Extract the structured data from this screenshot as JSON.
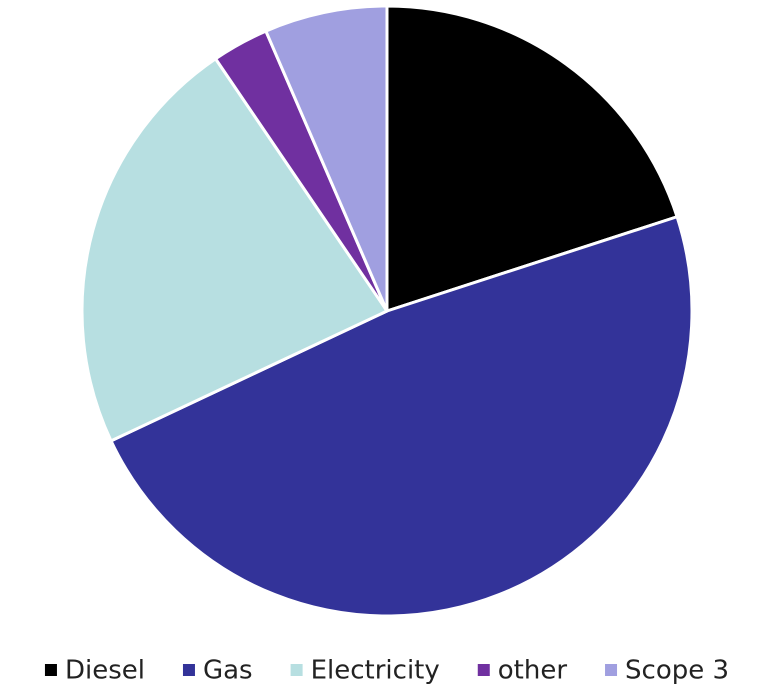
{
  "chart_data": {
    "type": "pie",
    "categories": [
      "Diesel",
      "Gas",
      "Electricity",
      "other",
      "Scope 3"
    ],
    "values": [
      20,
      48,
      22.5,
      3,
      6.5
    ],
    "colors": [
      "#000000",
      "#333399",
      "#b7dfe1",
      "#7030a0",
      "#a09fe0"
    ],
    "legend": "bottom"
  }
}
